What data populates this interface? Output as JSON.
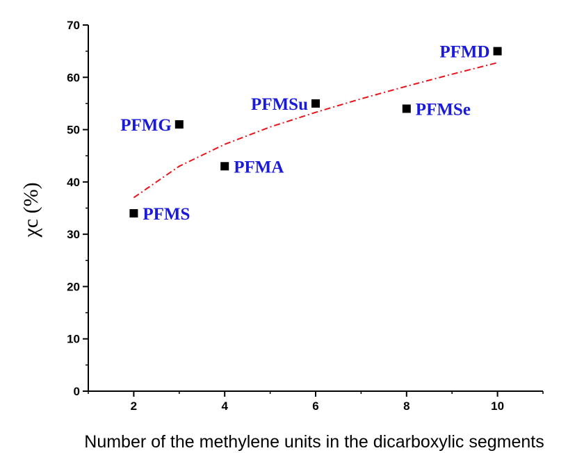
{
  "chart_data": {
    "type": "scatter",
    "title": "",
    "xlabel": "Number of the methylene units in the dicarboxylic segments",
    "ylabel": "χc (%)",
    "xlim": [
      1,
      11
    ],
    "ylim": [
      0,
      70
    ],
    "xticks": [
      2,
      4,
      6,
      8,
      10
    ],
    "yticks": [
      0,
      10,
      20,
      30,
      40,
      50,
      60,
      70
    ],
    "grid": false,
    "points": [
      {
        "label": "PFMS",
        "x": 2,
        "y": 34,
        "label_side": "right"
      },
      {
        "label": "PFMG",
        "x": 3,
        "y": 51,
        "label_side": "left"
      },
      {
        "label": "PFMA",
        "x": 4,
        "y": 43,
        "label_side": "right"
      },
      {
        "label": "PFMSu",
        "x": 6,
        "y": 55,
        "label_side": "left"
      },
      {
        "label": "PFMSe",
        "x": 8,
        "y": 54,
        "label_side": "right"
      },
      {
        "label": "PFMD",
        "x": 10,
        "y": 65,
        "label_side": "left"
      }
    ],
    "fit": {
      "style": "dash-dot",
      "x": [
        2,
        3,
        4,
        5,
        6,
        7,
        8,
        9,
        10
      ],
      "y": [
        37.0,
        43.0,
        47.2,
        50.5,
        53.3,
        55.9,
        58.3,
        60.6,
        62.8
      ]
    },
    "colors": {
      "marker": "#000000",
      "point_label": "#1a1adb",
      "fit_line": "#e8141a",
      "axis": "#000000"
    }
  }
}
